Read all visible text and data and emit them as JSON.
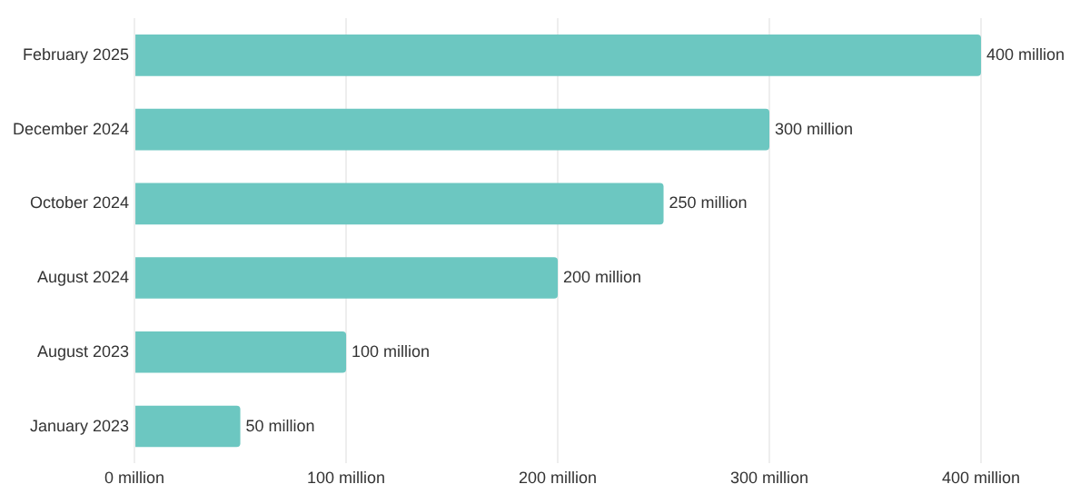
{
  "chart_data": {
    "type": "bar",
    "orientation": "horizontal",
    "categories": [
      "February 2025",
      "December 2024",
      "October 2024",
      "August 2024",
      "August 2023",
      "January 2023"
    ],
    "values": [
      400,
      300,
      250,
      200,
      100,
      50
    ],
    "value_labels": [
      "400 million",
      "300 million",
      "250 million",
      "200 million",
      "100 million",
      "50 million"
    ],
    "color": "#6cc7c1",
    "xlim": [
      0,
      400
    ],
    "xticks": [
      {
        "value": 0,
        "label": "0 million"
      },
      {
        "value": 100,
        "label": "100 million"
      },
      {
        "value": 200,
        "label": "200 million"
      },
      {
        "value": 300,
        "label": "300 million"
      },
      {
        "value": 400,
        "label": "400 million"
      }
    ],
    "grid": "x",
    "legend": false
  }
}
